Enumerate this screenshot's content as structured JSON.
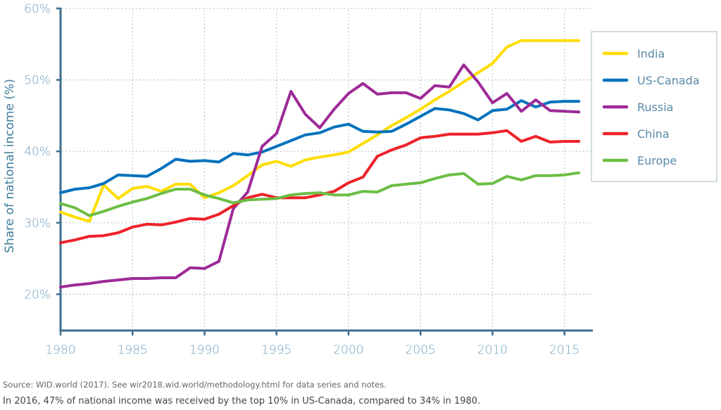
{
  "chart_data": {
    "type": "line",
    "title": "",
    "xlabel": "",
    "ylabel": "Share of national income (%)",
    "xlim": [
      1980,
      2016
    ],
    "ylim": [
      15,
      60
    ],
    "x_ticks": [
      1980,
      1985,
      1990,
      1995,
      2000,
      2005,
      2010,
      2015
    ],
    "x_tick_labels": [
      "1980",
      "1985",
      "1990",
      "1995",
      "2000",
      "2005",
      "2010",
      "2015"
    ],
    "y_ticks": [
      20,
      30,
      40,
      50,
      60
    ],
    "y_tick_labels": [
      "20%",
      "30%",
      "40%",
      "50%",
      "60%"
    ],
    "grid": true,
    "legend_position": "right",
    "x": [
      1980,
      1981,
      1982,
      1983,
      1984,
      1985,
      1986,
      1987,
      1988,
      1989,
      1990,
      1991,
      1992,
      1993,
      1994,
      1995,
      1996,
      1997,
      1998,
      1999,
      2000,
      2001,
      2002,
      2003,
      2004,
      2005,
      2006,
      2007,
      2008,
      2009,
      2010,
      2011,
      2012,
      2013,
      2014,
      2015,
      2016
    ],
    "series": [
      {
        "name": "India",
        "color": "#FFDD00",
        "values": [
          31.5,
          30.8,
          30.2,
          35.3,
          33.4,
          34.8,
          35.1,
          34.4,
          35.4,
          35.4,
          33.5,
          34.2,
          35.2,
          36.6,
          38.1,
          38.6,
          37.9,
          38.8,
          39.2,
          39.5,
          39.9,
          41.1,
          42.3,
          43.6,
          44.7,
          45.9,
          47.2,
          48.4,
          49.7,
          51.0,
          52.3,
          54.6,
          55.5,
          55.5,
          55.5,
          55.5,
          55.5
        ]
      },
      {
        "name": "US-Canada",
        "color": "#0072BC",
        "values": [
          34.2,
          34.7,
          34.9,
          35.5,
          36.7,
          36.6,
          36.5,
          37.6,
          38.9,
          38.6,
          38.7,
          38.5,
          39.7,
          39.5,
          39.9,
          40.7,
          41.5,
          42.3,
          42.6,
          43.4,
          43.8,
          42.8,
          42.7,
          42.8,
          43.8,
          44.9,
          46.0,
          45.8,
          45.3,
          44.4,
          45.7,
          45.9,
          47.1,
          46.2,
          46.9,
          47.0,
          47.0
        ]
      },
      {
        "name": "Russia",
        "color": "#9E2A98",
        "values": [
          21.0,
          21.3,
          21.5,
          21.8,
          22.0,
          22.2,
          22.2,
          22.3,
          22.3,
          23.7,
          23.6,
          24.6,
          32.0,
          34.3,
          40.7,
          42.5,
          48.4,
          45.2,
          43.3,
          45.9,
          48.1,
          49.5,
          48.0,
          48.2,
          48.2,
          47.4,
          49.2,
          49.0,
          52.1,
          49.7,
          46.8,
          48.1,
          45.6,
          47.2,
          45.7,
          45.6,
          45.5
        ]
      },
      {
        "name": "China",
        "color": "#EE2229",
        "values": [
          27.2,
          27.6,
          28.1,
          28.2,
          28.6,
          29.4,
          29.8,
          29.7,
          30.1,
          30.6,
          30.5,
          31.2,
          32.4,
          33.5,
          34.0,
          33.5,
          33.5,
          33.5,
          33.9,
          34.4,
          35.6,
          36.4,
          39.3,
          40.2,
          40.9,
          41.9,
          42.1,
          42.4,
          42.4,
          42.4,
          42.6,
          42.9,
          41.4,
          42.1,
          41.3,
          41.4,
          41.4
        ]
      },
      {
        "name": "Europe",
        "color": "#6CBE45",
        "values": [
          32.7,
          32.1,
          31.0,
          31.6,
          32.3,
          32.9,
          33.4,
          34.1,
          34.7,
          34.7,
          33.9,
          33.4,
          32.8,
          33.2,
          33.3,
          33.4,
          33.9,
          34.1,
          34.2,
          33.9,
          33.9,
          34.4,
          34.3,
          35.2,
          35.4,
          35.6,
          36.2,
          36.7,
          36.9,
          35.4,
          35.5,
          36.5,
          36.0,
          36.6,
          36.6,
          36.7,
          37.0
        ]
      }
    ]
  },
  "footer": {
    "source": "Source: WID.world (2017). See wir2018.wid.world/methodology.html for  data series and notes.",
    "note": "In 2016, 47% of national income was received by the top 10% in US-Canada, compared to 34% in 1980."
  },
  "colors": {
    "axis": "#3D6E8C",
    "grid": "#9FB8C8",
    "legend_border": "#C5D3DC"
  }
}
